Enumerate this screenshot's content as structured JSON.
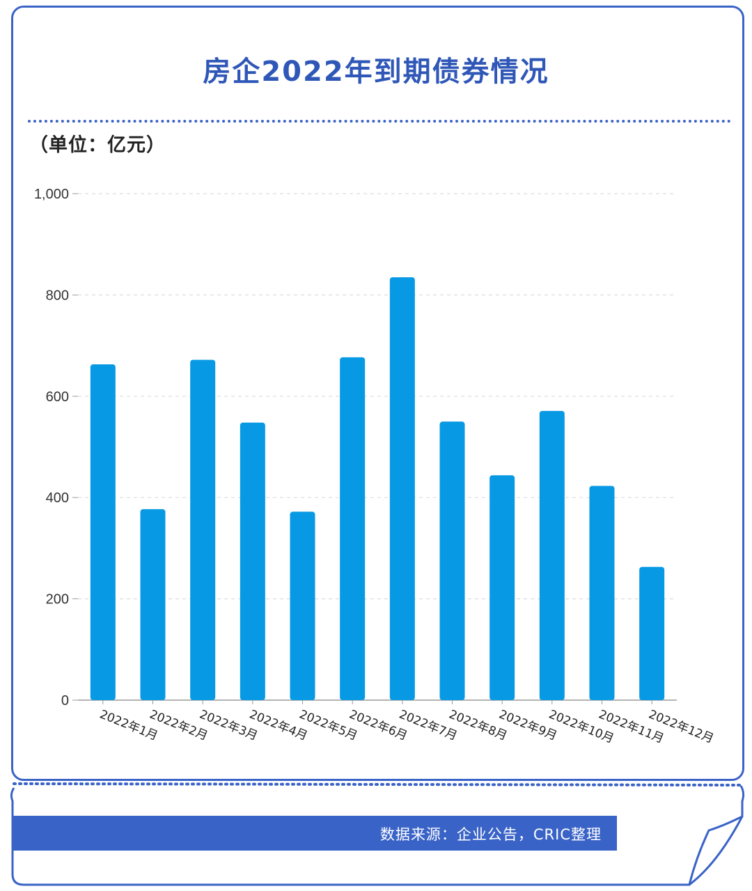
{
  "title": "房企2022年到期债券情况",
  "unit_label": "（单位：亿元）",
  "source": "数据来源：企业公告，CRIC整理",
  "colors": {
    "accent": "#3a63c7",
    "bar": "#0899e4",
    "title": "#2f57b7"
  },
  "chart_data": {
    "type": "bar",
    "title": "房企2022年到期债券情况",
    "ylabel": "（单位：亿元）",
    "xlabel": "",
    "ylim": [
      0,
      1000
    ],
    "yticks": [
      0,
      200,
      400,
      600,
      800,
      1000
    ],
    "ytick_labels": [
      "0",
      "200",
      "400",
      "600",
      "800",
      "1,000"
    ],
    "grid": true,
    "categories": [
      "2022年1月",
      "2022年2月",
      "2022年3月",
      "2022年4月",
      "2022年5月",
      "2022年6月",
      "2022年7月",
      "2022年8月",
      "2022年9月",
      "2022年10月",
      "2022年11月",
      "2022年12月"
    ],
    "values": [
      663,
      377,
      672,
      548,
      372,
      677,
      835,
      550,
      444,
      571,
      423,
      263
    ]
  }
}
